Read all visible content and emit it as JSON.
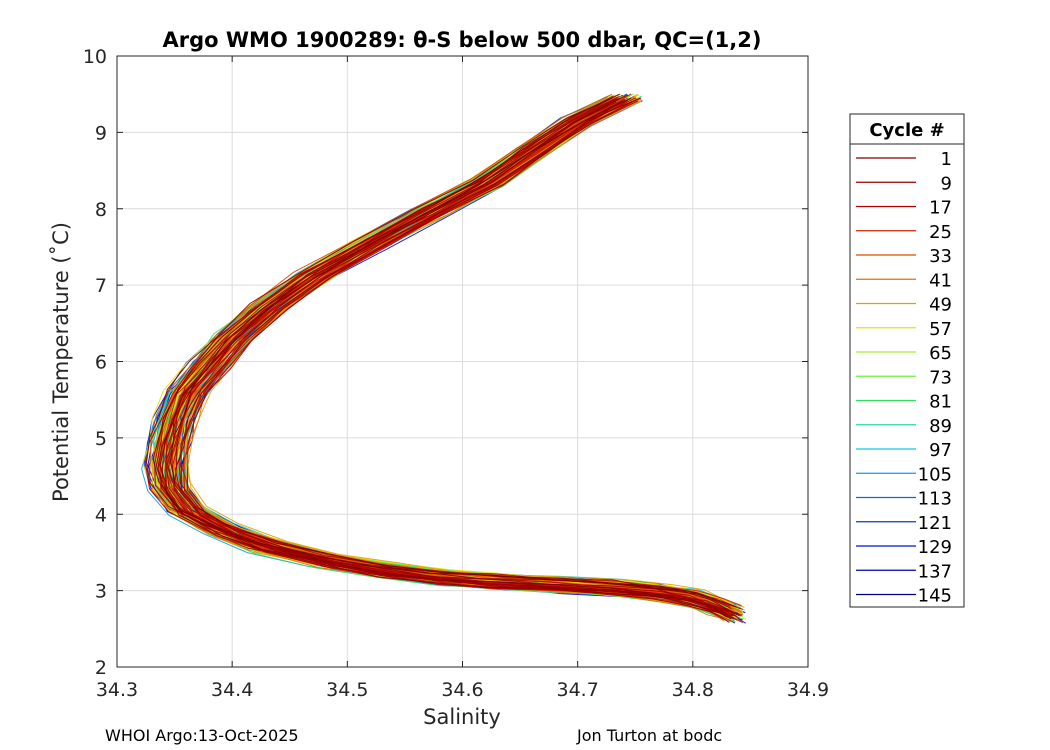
{
  "chart_data": {
    "type": "line",
    "title": "Argo WMO 1900289: θ-S below 500 dbar,  QC=(1,2)",
    "xlabel": "Salinity",
    "ylabel": "Potential Temperature (˚C)",
    "xlim": [
      34.3,
      34.9
    ],
    "ylim": [
      2,
      10
    ],
    "xticks": [
      "34.3",
      "34.4",
      "34.5",
      "34.6",
      "34.7",
      "34.8",
      "34.9"
    ],
    "yticks": [
      "2",
      "3",
      "4",
      "5",
      "6",
      "7",
      "8",
      "9",
      "10"
    ],
    "grid": true,
    "legend": {
      "title": "Cycle #",
      "placement": "right, outside axes",
      "entries": [
        {
          "label": "1",
          "color": "#800000"
        },
        {
          "label": "9",
          "color": "#9a0000"
        },
        {
          "label": "17",
          "color": "#b40000"
        },
        {
          "label": "25",
          "color": "#d02000"
        },
        {
          "label": "33",
          "color": "#e04a00"
        },
        {
          "label": "41",
          "color": "#e87000"
        },
        {
          "label": "49",
          "color": "#e8a000"
        },
        {
          "label": "57",
          "color": "#e8e000"
        },
        {
          "label": "65",
          "color": "#a8ee30"
        },
        {
          "label": "73",
          "color": "#70ee40"
        },
        {
          "label": "81",
          "color": "#30e060"
        },
        {
          "label": "89",
          "color": "#20e0a0"
        },
        {
          "label": "97",
          "color": "#10c8e0"
        },
        {
          "label": "105",
          "color": "#0aa0e0"
        },
        {
          "label": "113",
          "color": "#0070d0"
        },
        {
          "label": "121",
          "color": "#0040c0"
        },
        {
          "label": "129",
          "color": "#0010d0"
        },
        {
          "label": "137",
          "color": "#0000b0"
        },
        {
          "label": "145",
          "color": "#000080"
        }
      ]
    },
    "profile": {
      "description_points": "median θ-S curve below 500 dbar (salinity, potential temperature)",
      "points": [
        [
          34.74,
          9.45
        ],
        [
          34.7,
          9.15
        ],
        [
          34.66,
          8.75
        ],
        [
          34.62,
          8.35
        ],
        [
          34.57,
          7.95
        ],
        [
          34.52,
          7.55
        ],
        [
          34.47,
          7.12
        ],
        [
          34.43,
          6.7
        ],
        [
          34.4,
          6.3
        ],
        [
          34.38,
          5.95
        ],
        [
          34.36,
          5.6
        ],
        [
          34.35,
          5.25
        ],
        [
          34.345,
          4.95
        ],
        [
          34.342,
          4.65
        ],
        [
          34.345,
          4.35
        ],
        [
          34.36,
          4.05
        ],
        [
          34.39,
          3.8
        ],
        [
          34.43,
          3.58
        ],
        [
          34.48,
          3.4
        ],
        [
          34.53,
          3.27
        ],
        [
          34.58,
          3.18
        ],
        [
          34.63,
          3.12
        ],
        [
          34.68,
          3.08
        ],
        [
          34.73,
          3.04
        ],
        [
          34.77,
          2.98
        ],
        [
          34.8,
          2.9
        ],
        [
          34.82,
          2.8
        ],
        [
          34.835,
          2.7
        ]
      ]
    }
  },
  "footer": {
    "left": "WHOI Argo:13-Oct-2025",
    "right": "Jon Turton at bodc"
  }
}
